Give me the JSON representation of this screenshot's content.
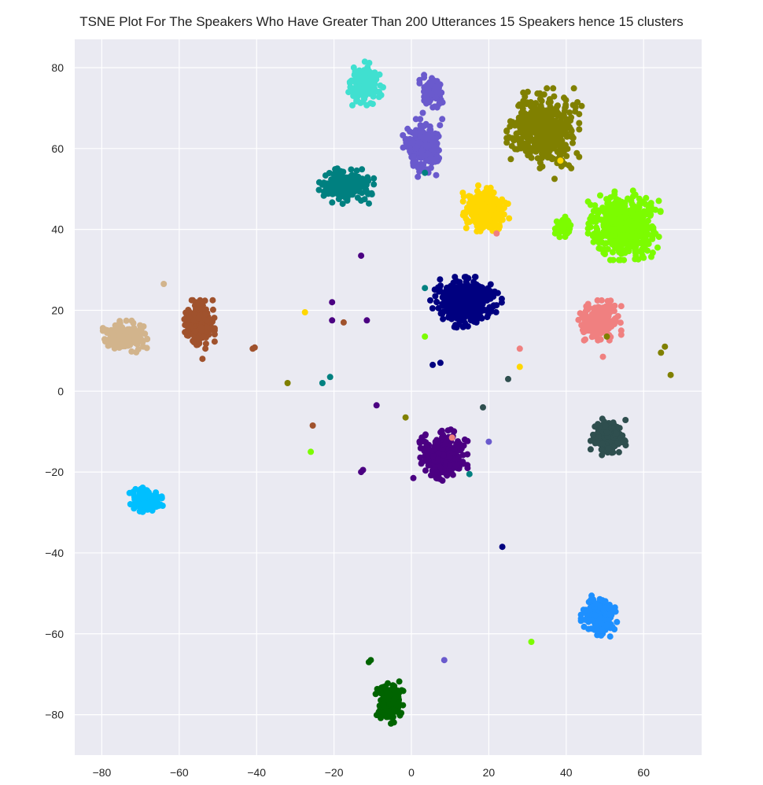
{
  "chart_data": {
    "type": "scatter",
    "title": "TSNE Plot For The Speakers Who Have Greater Than 200 Utterances 15 Speakers hence 15 clusters",
    "xlabel": "",
    "ylabel": "",
    "xlim": [
      -87,
      75
    ],
    "ylim": [
      -90,
      87
    ],
    "xticks": [
      -80,
      -60,
      -40,
      -20,
      0,
      20,
      40,
      60
    ],
    "yticks": [
      -80,
      -60,
      -40,
      -20,
      0,
      20,
      40,
      60,
      80
    ],
    "background": "#eaeaf2",
    "grid": true,
    "grid_color": "#ffffff",
    "legend": "none",
    "clusters": [
      {
        "color": "#40e0d0",
        "center": [
          -12,
          75.5
        ],
        "spread": [
          1.8,
          2.3
        ],
        "count": 170
      },
      {
        "color": "#6a5acd",
        "center": [
          5.5,
          73.5
        ],
        "spread": [
          1.3,
          1.8
        ],
        "count": 80
      },
      {
        "color": "#6a5acd",
        "center": [
          3,
          60
        ],
        "spread": [
          2.0,
          2.8
        ],
        "count": 220
      },
      {
        "color": "#808000",
        "center": [
          34,
          65
        ],
        "spread": [
          3.6,
          3.8
        ],
        "count": 520
      },
      {
        "color": "#008080",
        "center": [
          -17,
          51
        ],
        "spread": [
          2.8,
          1.8
        ],
        "count": 230
      },
      {
        "color": "#ffd700",
        "center": [
          19,
          45
        ],
        "spread": [
          2.4,
          2.5
        ],
        "count": 260
      },
      {
        "color": "#7cfc00",
        "center": [
          39.5,
          40.5
        ],
        "spread": [
          0.9,
          1.3
        ],
        "count": 50
      },
      {
        "color": "#7cfc00",
        "center": [
          55,
          41
        ],
        "spread": [
          3.6,
          3.3
        ],
        "count": 560
      },
      {
        "color": "#000080",
        "center": [
          14,
          22
        ],
        "spread": [
          3.6,
          2.4
        ],
        "count": 420
      },
      {
        "color": "#f08080",
        "center": [
          48.5,
          17.5
        ],
        "spread": [
          2.2,
          1.9
        ],
        "count": 240
      },
      {
        "color": "#d2b48c",
        "center": [
          -74,
          13.5
        ],
        "spread": [
          2.2,
          1.5
        ],
        "count": 230
      },
      {
        "color": "#a0522d",
        "center": [
          -55,
          16.5
        ],
        "spread": [
          1.6,
          2.3
        ],
        "count": 240
      },
      {
        "color": "#4b0082",
        "center": [
          8,
          -16
        ],
        "spread": [
          2.5,
          2.5
        ],
        "count": 330
      },
      {
        "color": "#2f4f4f",
        "center": [
          51,
          -11.5
        ],
        "spread": [
          1.8,
          1.8
        ],
        "count": 200
      },
      {
        "color": "#00bfff",
        "center": [
          -68.5,
          -27
        ],
        "spread": [
          1.7,
          1.3
        ],
        "count": 150
      },
      {
        "color": "#1e90ff",
        "center": [
          48.5,
          -55.5
        ],
        "spread": [
          1.8,
          2.0
        ],
        "count": 220
      },
      {
        "color": "#006400",
        "center": [
          -5.5,
          -77
        ],
        "spread": [
          1.5,
          2.0
        ],
        "count": 200
      }
    ],
    "outliers": [
      {
        "x": 44,
        "y": 70.5,
        "color": "#808000"
      },
      {
        "x": 37,
        "y": 52.5,
        "color": "#808000"
      },
      {
        "x": 38.5,
        "y": 57,
        "color": "#ffd700"
      },
      {
        "x": 3.5,
        "y": 54,
        "color": "#008080"
      },
      {
        "x": -13,
        "y": 33.5,
        "color": "#4b0082"
      },
      {
        "x": -64,
        "y": 26.5,
        "color": "#d2b48c"
      },
      {
        "x": 3.5,
        "y": 25.5,
        "color": "#008080"
      },
      {
        "x": -27.5,
        "y": 19.5,
        "color": "#ffd700"
      },
      {
        "x": -20.5,
        "y": 22,
        "color": "#4b0082"
      },
      {
        "x": -20.5,
        "y": 17.5,
        "color": "#4b0082"
      },
      {
        "x": -17.5,
        "y": 17,
        "color": "#a0522d"
      },
      {
        "x": -11.5,
        "y": 17.5,
        "color": "#4b0082"
      },
      {
        "x": 3.5,
        "y": 13.5,
        "color": "#7cfc00"
      },
      {
        "x": -41,
        "y": 10.5,
        "color": "#a0522d"
      },
      {
        "x": -40.5,
        "y": 10.8,
        "color": "#a0522d"
      },
      {
        "x": -54,
        "y": 8,
        "color": "#a0522d"
      },
      {
        "x": 5.5,
        "y": 6.5,
        "color": "#000080"
      },
      {
        "x": 7.5,
        "y": 7,
        "color": "#000080"
      },
      {
        "x": 28,
        "y": 10.5,
        "color": "#f08080"
      },
      {
        "x": 28,
        "y": 6,
        "color": "#ffd700"
      },
      {
        "x": 49.5,
        "y": 8.5,
        "color": "#f08080"
      },
      {
        "x": 50.5,
        "y": 13.5,
        "color": "#808000"
      },
      {
        "x": 22,
        "y": 39,
        "color": "#f08080"
      },
      {
        "x": 65.5,
        "y": 11,
        "color": "#808000"
      },
      {
        "x": 64.5,
        "y": 9.5,
        "color": "#808000"
      },
      {
        "x": 67,
        "y": 4,
        "color": "#808000"
      },
      {
        "x": -32,
        "y": 2,
        "color": "#808000"
      },
      {
        "x": -23,
        "y": 2,
        "color": "#008080"
      },
      {
        "x": -21,
        "y": 3.5,
        "color": "#008080"
      },
      {
        "x": 25,
        "y": 3,
        "color": "#2f4f4f"
      },
      {
        "x": -9,
        "y": -3.5,
        "color": "#4b0082"
      },
      {
        "x": -1.5,
        "y": -6.5,
        "color": "#808000"
      },
      {
        "x": 18.5,
        "y": -4,
        "color": "#2f4f4f"
      },
      {
        "x": -25.5,
        "y": -8.5,
        "color": "#a0522d"
      },
      {
        "x": 10.5,
        "y": -11.5,
        "color": "#f08080"
      },
      {
        "x": 20,
        "y": -12.5,
        "color": "#6a5acd"
      },
      {
        "x": -26,
        "y": -15,
        "color": "#7cfc00"
      },
      {
        "x": -13,
        "y": -20,
        "color": "#4b0082"
      },
      {
        "x": -12.5,
        "y": -19.5,
        "color": "#4b0082"
      },
      {
        "x": 0.5,
        "y": -21.5,
        "color": "#4b0082"
      },
      {
        "x": 15,
        "y": -20.5,
        "color": "#008080"
      },
      {
        "x": 23.5,
        "y": -38.5,
        "color": "#000080"
      },
      {
        "x": 31,
        "y": -62,
        "color": "#7cfc00"
      },
      {
        "x": 8.5,
        "y": -66.5,
        "color": "#6a5acd"
      },
      {
        "x": -11,
        "y": -67,
        "color": "#006400"
      },
      {
        "x": -10.5,
        "y": -66.5,
        "color": "#006400"
      }
    ]
  }
}
